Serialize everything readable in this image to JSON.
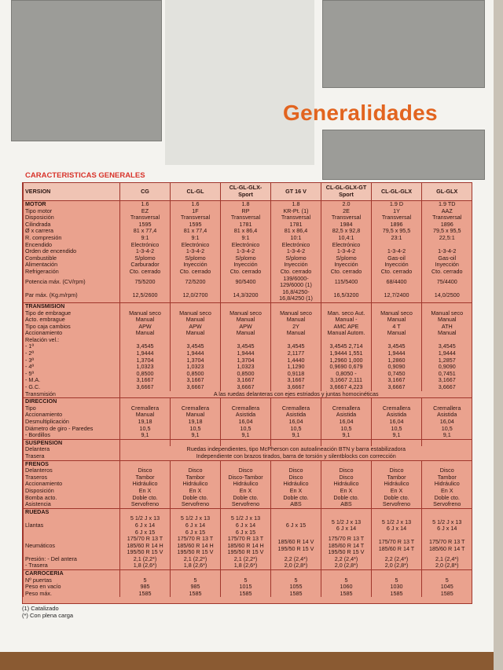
{
  "header": {
    "title": "Generalidades",
    "subtitle": "CARACTERISTICAS GENERALES"
  },
  "table": {
    "header": [
      "VERSION",
      "CG",
      "CL-GL",
      "CL-GL-GLX-\nSport",
      "GT 16 V",
      "CL-GL-GLX-GT\nSport",
      "CL-GL-GLX",
      "GL-GLX"
    ],
    "sections": [
      {
        "name": "MOTOR",
        "values": [
          "1.6",
          "1.6",
          "1.8",
          "1.8",
          "2.0",
          "1.9 D",
          "1.9 TD"
        ],
        "rows": [
          {
            "label": "Tipo motor",
            "cells": [
              "EZ",
              "1F",
              "RP",
              "KR-Pt. (1)",
              "2E",
              "1Y",
              "AAZ"
            ]
          },
          {
            "label": "Disposición",
            "cells": [
              "Transversal",
              "Transversal",
              "Transversal",
              "Transversal",
              "Transversal",
              "Transversal",
              "Transversal"
            ]
          },
          {
            "label": "Cilindrada",
            "cells": [
              "1595",
              "1595",
              "1781",
              "1781",
              "1984",
              "1896",
              "1896"
            ]
          },
          {
            "label": "Ø x carrera",
            "cells": [
              "81 x 77,4",
              "81 x 77,4",
              "81 x 86,4",
              "81 x 86,4",
              "82,5 x 92,8",
              "79,5 x 95,5",
              "79,5 x 95,5"
            ]
          },
          {
            "label": "R. compresión",
            "cells": [
              "9:1",
              "9:1",
              "9:1",
              "10:1",
              "10,4:1",
              "23:1",
              "22,5:1"
            ]
          },
          {
            "label": "Encendido",
            "cells": [
              "Electrónico",
              "Electrónico",
              "Electrónico",
              "Electrónico",
              "Electrónico",
              null,
              null
            ]
          },
          {
            "label": "Orden de encendido",
            "cells": [
              "1-3-4-2",
              "1-3-4-2",
              "1-3-4-2",
              "1-3-4-2",
              "1-3-4-2",
              "1-3-4-2",
              "1-3-4-2"
            ]
          },
          {
            "label": "Combustible",
            "cells": [
              "S/plomo",
              "S/plomo",
              "S/plomo",
              "S/plomo",
              "S/plomo",
              "Gas-oil",
              "Gas-oil"
            ]
          },
          {
            "label": "Alimentación",
            "cells": [
              "Carburador",
              "Inyección",
              "Inyección",
              "Inyección",
              "Inyección",
              "Inyección",
              "Inyección"
            ]
          },
          {
            "label": "Refrigeración",
            "cells": [
              "Cto. cerrado",
              "Cto. cerrado",
              "Cto. cerrado",
              "Cto. cerrado",
              "Cto. cerrado",
              "Cto. cerrado",
              "Cto. cerrado"
            ]
          },
          {
            "label": "Potencia máx. (CV/rpm)",
            "cells": [
              "75/5200",
              "72/5200",
              "90/5400",
              "139/6000-129/6000 (1)",
              "115/5400",
              "68/4400",
              "75/4400"
            ]
          },
          {
            "label": "Par máx. (Kg.m/rpm)",
            "cells": [
              "12,5/2600",
              "12,0/2700",
              "14,3/3200",
              "16,8/4250-16,8/4250 (1)",
              "16,5/3200",
              "12,7/2400",
              "14,0/2500"
            ]
          }
        ]
      },
      {
        "name": "TRANSMISION",
        "rows": [
          {
            "label": "Tipo de embrague",
            "cells": [
              "Manual seco",
              "Manual seco",
              "Manual seco",
              "Manual seco",
              "Man. seco    Aut.",
              "Manual seco",
              "Manual seco"
            ]
          },
          {
            "label": "Acto. embrague",
            "cells": [
              "Manual",
              "Manual",
              "Manual",
              "Manual",
              "Manual      -",
              "Manual",
              "Manual"
            ]
          },
          {
            "label": "Tipo caja cambios",
            "cells": [
              "APW",
              "APW",
              "APW",
              "2Y",
              "AMC      APE",
              "4 T",
              "ATH"
            ]
          },
          {
            "label": "Accionamiento",
            "cells": [
              "Manual",
              "Manual",
              "Manual",
              "Manual",
              "Manual   Autom.",
              "Manual",
              "Manual"
            ]
          },
          {
            "label": "Relación vel.:"
          },
          {
            "label": "   - 1ª",
            "cells": [
              "3,4545",
              "3,4545",
              "3,4545",
              "3,4545",
              "3,4545   2,714",
              "3,4545",
              "3,4545"
            ]
          },
          {
            "label": "   - 2ª",
            "cells": [
              "1,9444",
              "1,9444",
              "1,9444",
              "2,1177",
              "1,9444   1,551",
              "1,9444",
              "1,9444"
            ]
          },
          {
            "label": "   - 3ª",
            "cells": [
              "1,3704",
              "1,3704",
              "1,3704",
              "1,4440",
              "1,2960   1,000",
              "1,2860",
              "1,2857"
            ]
          },
          {
            "label": "   - 4ª",
            "cells": [
              "1,0323",
              "1,0323",
              "1,0323",
              "1,1290",
              "0,9690   0,679",
              "0,9090",
              "0,9090"
            ]
          },
          {
            "label": "   - 5ª",
            "cells": [
              "0,8500",
              "0,8500",
              "0,8500",
              "0,9118",
              "0,8050      -",
              "0,7450",
              "0,7451"
            ]
          },
          {
            "label": "   - M.A.",
            "cells": [
              "3,1667",
              "3,1667",
              "3,1667",
              "3,1667",
              "3,1667   2,111",
              "3,1667",
              "3,1667"
            ]
          },
          {
            "label": "   - G.C.",
            "cells": [
              "3,6667",
              "3,6667",
              "3,6667",
              "3,6667",
              "3,6667   4,223",
              "3,6667",
              "3,6667"
            ]
          },
          {
            "label": "Transmisión",
            "span": "A las ruedas delanteras con ejes estriados y juntas homocinéticas"
          }
        ]
      },
      {
        "name": "DIRECCION",
        "rows": [
          {
            "label": "Tipo",
            "cells": [
              "Cremallera",
              "Cremallera",
              "Cremallera",
              "Cremallera",
              "Cremallera",
              "Cremallera",
              "Cremallera"
            ]
          },
          {
            "label": "Accionamiento",
            "cells": [
              "Manual",
              "Manual",
              "Asistida",
              "Asistida",
              "Asistida",
              "Asistida",
              "Asistida"
            ]
          },
          {
            "label": "Desmultiplicación",
            "cells": [
              "19,18",
              "19,18",
              "16,04",
              "16,04",
              "16,04",
              "16,04",
              "16,04"
            ]
          },
          {
            "label": "Diámetro de giro   - Paredes",
            "cells": [
              "10,5",
              "10,5",
              "10,5",
              "10,5",
              "10,5",
              "10,5",
              "10,5"
            ]
          },
          {
            "label": "                       - Bordillos",
            "cells": [
              "9,1",
              "9,1",
              "9,1",
              "9,1",
              "9,1",
              "9,1",
              "9,1"
            ]
          }
        ]
      },
      {
        "name": "SUSPENSION",
        "rows": [
          {
            "label": "Delantera",
            "span": "Ruedas independientes, tipo McPherson con autoalineación BTN y barra estabilizadora"
          },
          {
            "label": "Trasera",
            "span": "Independiente con brazos tirados, barra de torsión y silentblocks con corrección"
          }
        ]
      },
      {
        "name": "FRENOS",
        "rows": [
          {
            "label": "Delanteros",
            "cells": [
              "Disco",
              "Disco",
              "Disco",
              "Disco",
              "Disco",
              "Disco",
              "Disco"
            ]
          },
          {
            "label": "Traseros",
            "cells": [
              "Tambor",
              "Tambor",
              "Disco-Tambor",
              "Disco",
              "Disco",
              "Tambor",
              "Tambor"
            ]
          },
          {
            "label": "Accionamiento",
            "cells": [
              "Hidráulico",
              "Hidráulico",
              "Hidráulico",
              "Hidráulico",
              "Hidráulico",
              "Hidráulico",
              "Hidráulico"
            ]
          },
          {
            "label": "Disposición",
            "cells": [
              "En X",
              "En X",
              "En X",
              "En X",
              "En X",
              "En X",
              "En X"
            ]
          },
          {
            "label": "Bomba acto.",
            "cells": [
              "Doble cto.",
              "Doble cto.",
              "Doble cto.",
              "Doble cto.",
              "Doble cto.",
              "Doble cto.",
              "Doble cto."
            ]
          },
          {
            "label": "Asistencia",
            "cells": [
              "Servofreno",
              "Servofreno",
              "Servofreno",
              "ABS",
              "ABS",
              "Servofreno",
              "Servofreno"
            ]
          }
        ]
      },
      {
        "name": "RUEDAS",
        "rows": [
          {
            "label": "Llantas",
            "cells": [
              "5 1/2 J x 13\n6 J x 14\n6 J x 15",
              "5 1/2 J x 13\n6 J x 14\n6 J x 15",
              "5 1/2 J x 13\n6 J x 14\n6 J x 15",
              "6 J x 15",
              "5 1/2 J x 13\n6 J x 14",
              "5 1/2 J x 13\n6 J x 14",
              "5 1/2 J x 13\n6 J x 14"
            ]
          },
          {
            "label": "Neumáticos",
            "cells": [
              "175/70 R 13 T\n185/60 R 14 H\n195/50 R 15 V",
              "175/70 R 13 T\n185/60 R 14 H\n195/50 R 15 V",
              "175/70 R 13 T\n185/60 R 14 H\n195/50 R 15 V",
              "185/60 R 14 V\n195/50 R 15 V",
              "175/70 R 13 T\n185/60 R 14 T\n195/50 R 15 V",
              "175/70 R 13 T\n185/60 R 14 T",
              "175/70 R 13 T\n185/60 R 14 T"
            ]
          },
          {
            "label": "Presión:       - Del antera",
            "cells": [
              "2,1 (2,2*)",
              "2,1 (2,2*)",
              "2,1 (2,2*)",
              "2,2 (2,4*)",
              "2,2 (2,4*)",
              "2,2 (2,4*)",
              "2,1 (2,4*)"
            ]
          },
          {
            "label": "                   - Trasera",
            "cells": [
              "1,8 (2,6*)",
              "1,8 (2,6*)",
              "1,8 (2,6*)",
              "2,0 (2,8*)",
              "2,0 (2,8*)",
              "2,0 (2,8*)",
              "2,0 (2,8*)"
            ]
          }
        ]
      },
      {
        "name": "CARROCERIA",
        "rows": [
          {
            "label": "Nº puertas",
            "cells": [
              "5",
              "5",
              "5",
              "5",
              "5",
              "5",
              "5"
            ]
          },
          {
            "label": "Peso en vacío",
            "cells": [
              "985",
              "985",
              "1015",
              "1055",
              "1060",
              "1030",
              "1045"
            ]
          },
          {
            "label": "Peso máx.",
            "cells": [
              "1585",
              "1585",
              "1585",
              "1585",
              "1585",
              "1585",
              "1585"
            ]
          }
        ]
      }
    ]
  },
  "notes": [
    "(1) Catalizado",
    "(*) Con plena carga"
  ]
}
